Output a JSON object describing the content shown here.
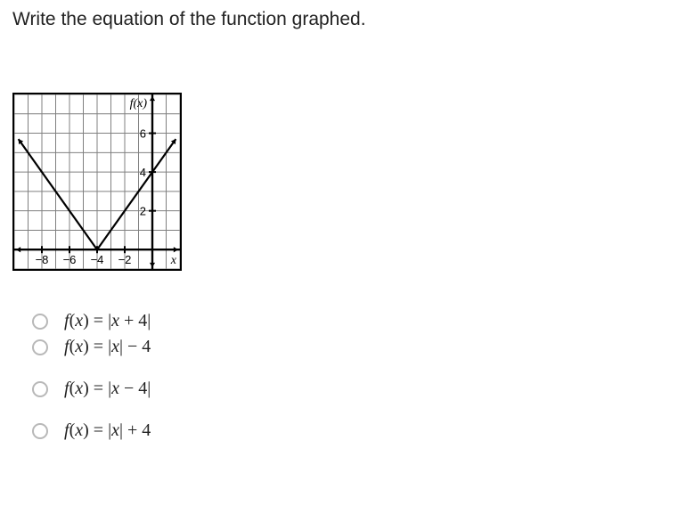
{
  "question": {
    "text": "Write the equation of the function graphed."
  },
  "graph": {
    "type": "absolute-value",
    "vertex_x": -4,
    "vertex_y": 0,
    "x_axis_label": "x",
    "y_axis_label": "f(x)",
    "x_ticks": [
      -8,
      -6,
      -4,
      -2
    ],
    "y_ticks": [
      2,
      4,
      6
    ],
    "x_min": -10,
    "x_max": 2,
    "y_min": -1,
    "y_max": 8,
    "grid_color": "#808080",
    "axis_color": "#000000",
    "line_color": "#000000",
    "background_color": "#ffffff",
    "line_width": 2.2,
    "tick_fontsize": 13,
    "label_fontsize": 14,
    "grid_stroke_width": 1,
    "axis_stroke_width": 2.4
  },
  "choices": [
    {
      "label_html": "f(x) = |x + 4|",
      "fx": "f",
      "x": "x",
      "rest": " = |",
      "mid": " + 4|"
    },
    {
      "label_html": "f(x) = |x| − 4",
      "fx": "f",
      "x": "x",
      "rest": " = |",
      "mid": "| − 4"
    },
    {
      "label_html": "f(x) = |x − 4|",
      "fx": "f",
      "x": "x",
      "rest": " = |",
      "mid": " − 4|"
    },
    {
      "label_html": "f(x) = |x| + 4",
      "fx": "f",
      "x": "x",
      "rest": " = |",
      "mid": "| + 4"
    }
  ]
}
